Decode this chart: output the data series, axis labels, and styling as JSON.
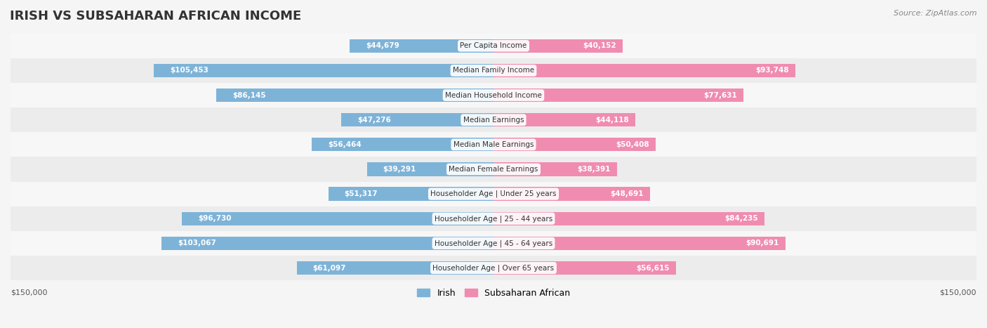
{
  "title": "IRISH VS SUBSAHARAN AFRICAN INCOME",
  "source": "Source: ZipAtlas.com",
  "categories": [
    "Per Capita Income",
    "Median Family Income",
    "Median Household Income",
    "Median Earnings",
    "Median Male Earnings",
    "Median Female Earnings",
    "Householder Age | Under 25 years",
    "Householder Age | 25 - 44 years",
    "Householder Age | 45 - 64 years",
    "Householder Age | Over 65 years"
  ],
  "irish_values": [
    44679,
    105453,
    86145,
    47276,
    56464,
    39291,
    51317,
    96730,
    103067,
    61097
  ],
  "subsaharan_values": [
    40152,
    93748,
    77631,
    44118,
    50408,
    38391,
    48691,
    84235,
    90691,
    56615
  ],
  "irish_labels": [
    "$44,679",
    "$105,453",
    "$86,145",
    "$47,276",
    "$56,464",
    "$39,291",
    "$51,317",
    "$96,730",
    "$103,067",
    "$61,097"
  ],
  "subsaharan_labels": [
    "$40,152",
    "$93,748",
    "$77,631",
    "$44,118",
    "$50,408",
    "$38,391",
    "$48,691",
    "$84,235",
    "$90,691",
    "$56,615"
  ],
  "irish_color": "#7EB3D8",
  "irish_color_dark": "#5B9DC8",
  "subsaharan_color": "#F08CB0",
  "subsaharan_color_dark": "#E86898",
  "max_value": 150000,
  "background_color": "#f5f5f5",
  "row_bg_color": "#ffffff",
  "row_alt_bg_color": "#f0f0f0",
  "irish_label_color_inside": "#ffffff",
  "irish_label_color_outside": "#555555",
  "subsaharan_label_color_inside": "#ffffff",
  "subsaharan_label_color_outside": "#555555",
  "inside_threshold": 30000
}
